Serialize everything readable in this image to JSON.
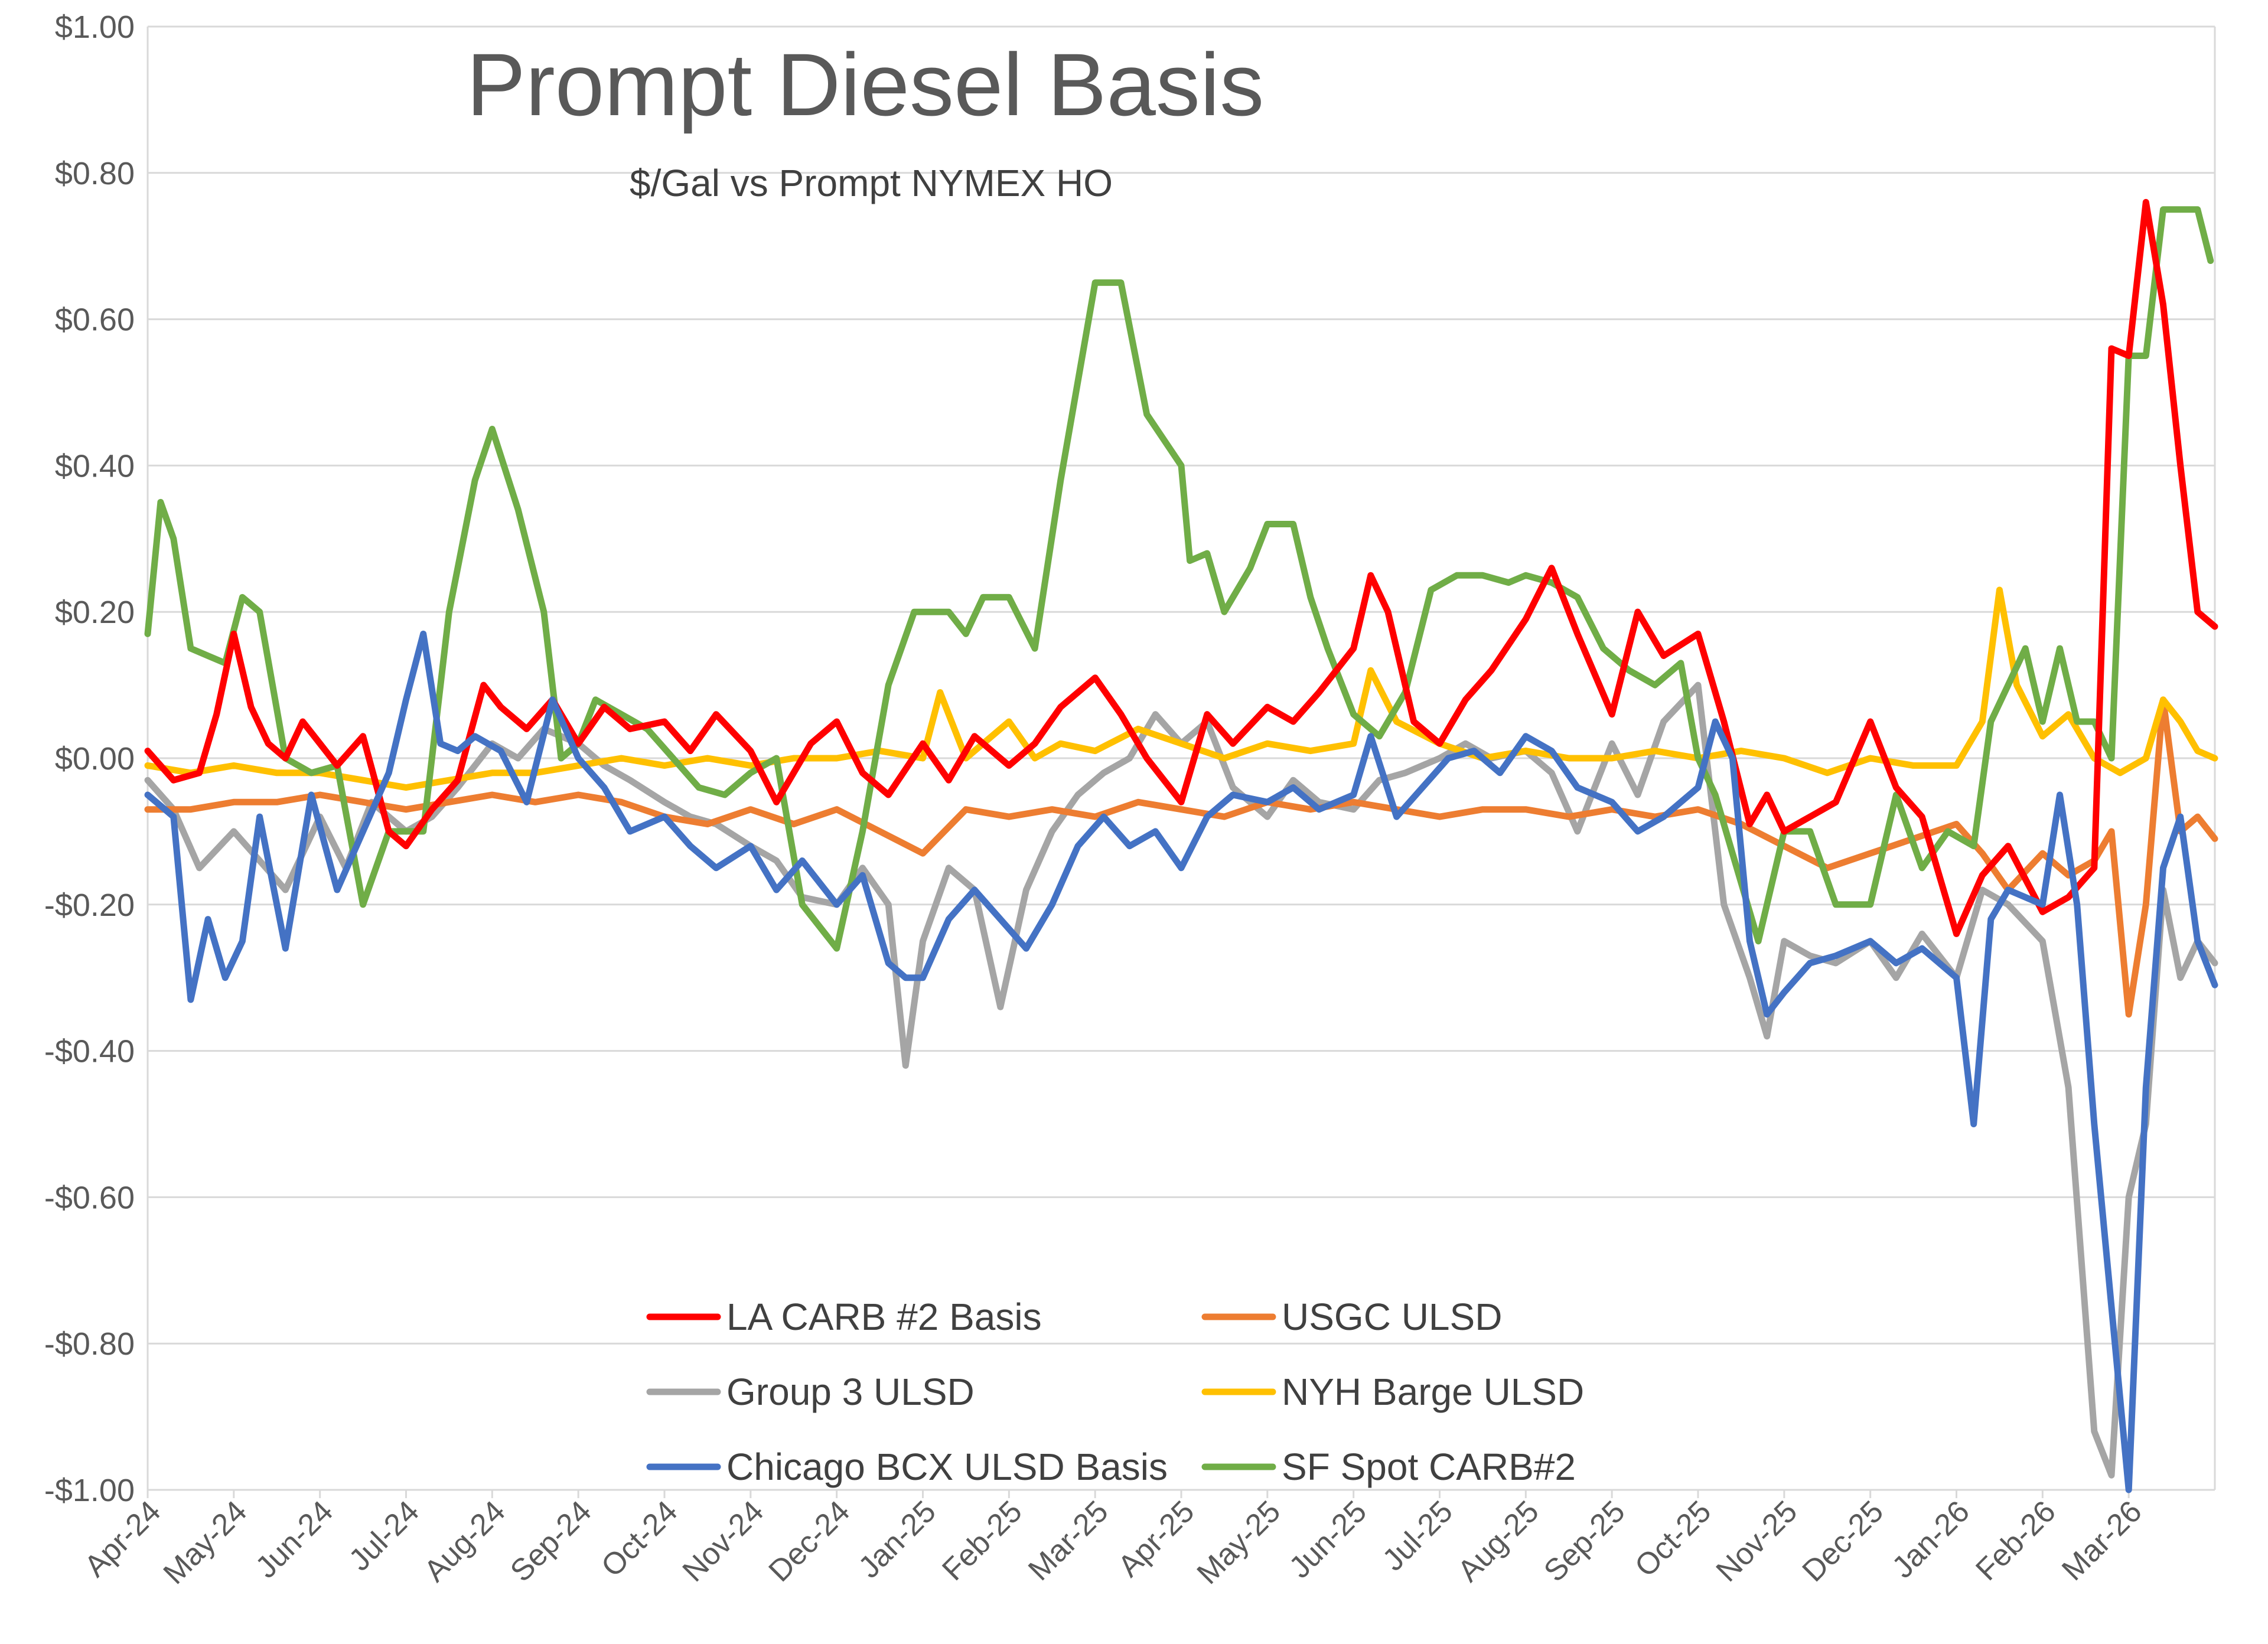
{
  "chart_data": {
    "type": "line",
    "title": "Prompt Diesel Basis",
    "subtitle": "$/Gal vs  Prompt NYMEX HO",
    "xlabel": "",
    "ylabel": "",
    "ylim": [
      -1.0,
      1.0
    ],
    "yticks": [
      1.0,
      0.8,
      0.6,
      0.4,
      0.2,
      0.0,
      -0.2,
      -0.4,
      -0.6,
      -0.8,
      -1.0
    ],
    "ytick_labels": [
      "$1.00",
      "$0.80",
      "$0.60",
      "$0.40",
      "$0.20",
      "$0.00",
      "-$0.20",
      "-$0.40",
      "-$0.60",
      "-$0.80",
      "-$1.00"
    ],
    "x_range": [
      0,
      24
    ],
    "x_tick_labels": [
      "Apr-24",
      "May-24",
      "Jun-24",
      "Jul-24",
      "Aug-24",
      "Sep-24",
      "Oct-24",
      "Nov-24",
      "Dec-24",
      "Jan-25",
      "Feb-25",
      "Mar-25",
      "Apr-25",
      "May-25",
      "Jun-25",
      "Jul-25",
      "Aug-25",
      "Sep-25",
      "Oct-25",
      "Nov-25",
      "Dec-25",
      "Jan-26",
      "Feb-26",
      "Mar-26"
    ],
    "x_unit": "months since Apr-24",
    "grid": true,
    "legend_position": "bottom-center",
    "series": [
      {
        "name": "LA CARB #2 Basis",
        "color": "#ff0000",
        "x": [
          0,
          0.3,
          0.6,
          0.8,
          1.0,
          1.2,
          1.4,
          1.6,
          1.8,
          2.0,
          2.2,
          2.5,
          2.8,
          3.0,
          3.3,
          3.6,
          3.9,
          4.1,
          4.4,
          4.7,
          5.0,
          5.3,
          5.6,
          6.0,
          6.3,
          6.6,
          7.0,
          7.3,
          7.7,
          8.0,
          8.3,
          8.6,
          9.0,
          9.3,
          9.6,
          10.0,
          10.3,
          10.6,
          11.0,
          11.3,
          11.6,
          12.0,
          12.3,
          12.6,
          13.0,
          13.3,
          13.6,
          14.0,
          14.2,
          14.4,
          14.7,
          15.0,
          15.3,
          15.6,
          16.0,
          16.3,
          16.6,
          17.0,
          17.3,
          17.6,
          18.0,
          18.3,
          18.6,
          18.8,
          19.0,
          19.3,
          19.6,
          20.0,
          20.3,
          20.6,
          21.0,
          21.3,
          21.6,
          22.0,
          22.3,
          22.6,
          22.8,
          23.0,
          23.2,
          23.4,
          23.6,
          23.8,
          24.0
        ],
        "values": [
          0.01,
          -0.03,
          -0.02,
          0.06,
          0.17,
          0.07,
          0.02,
          0.0,
          0.05,
          0.02,
          -0.01,
          0.03,
          -0.1,
          -0.12,
          -0.07,
          -0.03,
          0.1,
          0.07,
          0.04,
          0.08,
          0.02,
          0.07,
          0.04,
          0.05,
          0.01,
          0.06,
          0.01,
          -0.06,
          0.02,
          0.05,
          -0.02,
          -0.05,
          0.02,
          -0.03,
          0.03,
          -0.01,
          0.02,
          0.07,
          0.11,
          0.06,
          0.0,
          -0.06,
          0.06,
          0.02,
          0.07,
          0.05,
          0.09,
          0.15,
          0.25,
          0.2,
          0.05,
          0.02,
          0.08,
          0.12,
          0.19,
          0.26,
          0.17,
          0.06,
          0.2,
          0.14,
          0.17,
          0.05,
          -0.09,
          -0.05,
          -0.1,
          -0.08,
          -0.06,
          0.05,
          -0.04,
          -0.08,
          -0.24,
          -0.16,
          -0.12,
          -0.21,
          -0.19,
          -0.15,
          0.56,
          0.55,
          0.76,
          0.62,
          0.4,
          0.2,
          0.18
        ]
      },
      {
        "name": "USGC ULSD",
        "color": "#ed7d31",
        "x": [
          0,
          0.5,
          1.0,
          1.5,
          2.0,
          2.5,
          3.0,
          3.5,
          4.0,
          4.5,
          5.0,
          5.5,
          6.0,
          6.5,
          7.0,
          7.5,
          8.0,
          8.5,
          9.0,
          9.5,
          10.0,
          10.5,
          11.0,
          11.5,
          12.0,
          12.5,
          13.0,
          13.5,
          14.0,
          14.5,
          15.0,
          15.5,
          16.0,
          16.5,
          17.0,
          17.5,
          18.0,
          18.5,
          19.0,
          19.5,
          20.0,
          20.5,
          21.0,
          21.3,
          21.6,
          22.0,
          22.3,
          22.6,
          22.8,
          23.0,
          23.2,
          23.4,
          23.6,
          23.8,
          24.0
        ],
        "values": [
          -0.07,
          -0.07,
          -0.06,
          -0.06,
          -0.05,
          -0.06,
          -0.07,
          -0.06,
          -0.05,
          -0.06,
          -0.05,
          -0.06,
          -0.08,
          -0.09,
          -0.07,
          -0.09,
          -0.07,
          -0.1,
          -0.13,
          -0.07,
          -0.08,
          -0.07,
          -0.08,
          -0.06,
          -0.07,
          -0.08,
          -0.06,
          -0.07,
          -0.06,
          -0.07,
          -0.08,
          -0.07,
          -0.07,
          -0.08,
          -0.07,
          -0.08,
          -0.07,
          -0.09,
          -0.12,
          -0.15,
          -0.13,
          -0.11,
          -0.09,
          -0.13,
          -0.18,
          -0.13,
          -0.16,
          -0.14,
          -0.1,
          -0.35,
          -0.2,
          0.08,
          -0.1,
          -0.08,
          -0.11
        ]
      },
      {
        "name": "Group 3 ULSD",
        "color": "#a5a5a5",
        "x": [
          0,
          0.3,
          0.6,
          1.0,
          1.3,
          1.6,
          2.0,
          2.3,
          2.6,
          3.0,
          3.3,
          3.6,
          4.0,
          4.3,
          4.6,
          5.0,
          5.3,
          5.6,
          6.0,
          6.3,
          6.6,
          7.0,
          7.3,
          7.6,
          8.0,
          8.3,
          8.6,
          8.8,
          9.0,
          9.3,
          9.6,
          9.9,
          10.2,
          10.5,
          10.8,
          11.1,
          11.4,
          11.7,
          12.0,
          12.3,
          12.6,
          13.0,
          13.3,
          13.6,
          14.0,
          14.3,
          14.6,
          15.0,
          15.3,
          15.6,
          16.0,
          16.3,
          16.6,
          17.0,
          17.3,
          17.6,
          18.0,
          18.3,
          18.6,
          18.8,
          19.0,
          19.3,
          19.6,
          20.0,
          20.3,
          20.6,
          21.0,
          21.3,
          21.6,
          22.0,
          22.3,
          22.6,
          22.8,
          23.0,
          23.2,
          23.4,
          23.6,
          23.8,
          24.0
        ],
        "values": [
          -0.03,
          -0.07,
          -0.15,
          -0.1,
          -0.14,
          -0.18,
          -0.08,
          -0.15,
          -0.06,
          -0.1,
          -0.08,
          -0.04,
          0.02,
          0.0,
          0.04,
          0.02,
          -0.01,
          -0.03,
          -0.06,
          -0.08,
          -0.09,
          -0.12,
          -0.14,
          -0.19,
          -0.2,
          -0.15,
          -0.2,
          -0.42,
          -0.25,
          -0.15,
          -0.18,
          -0.34,
          -0.18,
          -0.1,
          -0.05,
          -0.02,
          0.0,
          0.06,
          0.02,
          0.05,
          -0.04,
          -0.08,
          -0.03,
          -0.06,
          -0.07,
          -0.03,
          -0.02,
          0.0,
          0.02,
          0.0,
          0.01,
          -0.02,
          -0.1,
          0.02,
          -0.05,
          0.05,
          0.1,
          -0.2,
          -0.3,
          -0.38,
          -0.25,
          -0.27,
          -0.28,
          -0.25,
          -0.3,
          -0.24,
          -0.3,
          -0.18,
          -0.2,
          -0.25,
          -0.45,
          -0.92,
          -0.98,
          -0.6,
          -0.5,
          -0.18,
          -0.3,
          -0.25,
          -0.28
        ]
      },
      {
        "name": "NYH Barge ULSD",
        "color": "#ffc000",
        "x": [
          0,
          0.5,
          1.0,
          1.5,
          2.0,
          2.5,
          3.0,
          3.5,
          4.0,
          4.5,
          5.0,
          5.5,
          6.0,
          6.5,
          7.0,
          7.5,
          8.0,
          8.5,
          9.0,
          9.2,
          9.5,
          10.0,
          10.3,
          10.6,
          11.0,
          11.5,
          12.0,
          12.5,
          13.0,
          13.5,
          14.0,
          14.2,
          14.5,
          15.0,
          15.5,
          16.0,
          16.5,
          17.0,
          17.5,
          18.0,
          18.5,
          19.0,
          19.5,
          20.0,
          20.5,
          21.0,
          21.3,
          21.5,
          21.7,
          22.0,
          22.3,
          22.6,
          22.9,
          23.2,
          23.4,
          23.6,
          23.8,
          24.0
        ],
        "values": [
          -0.01,
          -0.02,
          -0.01,
          -0.02,
          -0.02,
          -0.03,
          -0.04,
          -0.03,
          -0.02,
          -0.02,
          -0.01,
          0.0,
          -0.01,
          0.0,
          -0.01,
          0.0,
          0.0,
          0.01,
          0.0,
          0.09,
          0.0,
          0.05,
          0.0,
          0.02,
          0.01,
          0.04,
          0.02,
          0.0,
          0.02,
          0.01,
          0.02,
          0.12,
          0.05,
          0.02,
          0.0,
          0.01,
          0.0,
          0.0,
          0.01,
          0.0,
          0.01,
          0.0,
          -0.02,
          0.0,
          -0.01,
          -0.01,
          0.05,
          0.23,
          0.1,
          0.03,
          0.06,
          0.0,
          -0.02,
          0.0,
          0.08,
          0.05,
          0.01,
          0.0
        ]
      },
      {
        "name": "Chicago BCX ULSD Basis",
        "color": "#4472c4",
        "x": [
          0,
          0.3,
          0.5,
          0.7,
          0.9,
          1.1,
          1.3,
          1.6,
          1.9,
          2.2,
          2.5,
          2.8,
          3.0,
          3.2,
          3.4,
          3.6,
          3.8,
          4.1,
          4.4,
          4.7,
          5.0,
          5.3,
          5.6,
          6.0,
          6.3,
          6.6,
          7.0,
          7.3,
          7.6,
          8.0,
          8.3,
          8.6,
          8.8,
          9.0,
          9.3,
          9.6,
          9.9,
          10.2,
          10.5,
          10.8,
          11.1,
          11.4,
          11.7,
          12.0,
          12.3,
          12.6,
          13.0,
          13.3,
          13.6,
          14.0,
          14.2,
          14.5,
          14.8,
          15.1,
          15.4,
          15.7,
          16.0,
          16.3,
          16.6,
          17.0,
          17.3,
          17.6,
          18.0,
          18.2,
          18.4,
          18.6,
          18.8,
          19.0,
          19.3,
          19.6,
          20.0,
          20.3,
          20.6,
          21.0,
          21.2,
          21.4,
          21.6,
          22.0,
          22.2,
          22.4,
          22.6,
          22.8,
          23.0,
          23.2,
          23.4,
          23.6,
          23.8,
          24.0
        ],
        "values": [
          -0.05,
          -0.08,
          -0.33,
          -0.22,
          -0.3,
          -0.25,
          -0.08,
          -0.26,
          -0.05,
          -0.18,
          -0.1,
          -0.02,
          0.08,
          0.17,
          0.02,
          0.01,
          0.03,
          0.01,
          -0.06,
          0.08,
          0.0,
          -0.04,
          -0.1,
          -0.08,
          -0.12,
          -0.15,
          -0.12,
          -0.18,
          -0.14,
          -0.2,
          -0.16,
          -0.28,
          -0.3,
          -0.3,
          -0.22,
          -0.18,
          -0.22,
          -0.26,
          -0.2,
          -0.12,
          -0.08,
          -0.12,
          -0.1,
          -0.15,
          -0.08,
          -0.05,
          -0.06,
          -0.04,
          -0.07,
          -0.05,
          0.03,
          -0.08,
          -0.04,
          0.0,
          0.01,
          -0.02,
          0.03,
          0.01,
          -0.04,
          -0.06,
          -0.1,
          -0.08,
          -0.04,
          0.05,
          0.0,
          -0.25,
          -0.35,
          -0.32,
          -0.28,
          -0.27,
          -0.25,
          -0.28,
          -0.26,
          -0.3,
          -0.5,
          -0.22,
          -0.18,
          -0.2,
          -0.05,
          -0.2,
          -0.5,
          -0.75,
          -1.0,
          -0.45,
          -0.15,
          -0.08,
          -0.25,
          -0.31
        ]
      },
      {
        "name": "SF Spot CARB#2",
        "color": "#70ad47",
        "x": [
          0,
          0.15,
          0.3,
          0.5,
          0.7,
          0.9,
          1.1,
          1.3,
          1.6,
          1.9,
          2.2,
          2.5,
          2.8,
          3.0,
          3.2,
          3.5,
          3.8,
          4.0,
          4.3,
          4.6,
          4.8,
          5.0,
          5.2,
          5.5,
          5.8,
          6.1,
          6.4,
          6.7,
          7.0,
          7.3,
          7.6,
          8.0,
          8.3,
          8.6,
          8.9,
          9.1,
          9.3,
          9.5,
          9.7,
          10.0,
          10.3,
          10.6,
          11.0,
          11.3,
          11.6,
          12.0,
          12.1,
          12.3,
          12.5,
          12.8,
          13.0,
          13.3,
          13.5,
          13.7,
          14.0,
          14.3,
          14.6,
          14.9,
          15.2,
          15.5,
          15.8,
          16.0,
          16.3,
          16.6,
          16.9,
          17.2,
          17.5,
          17.8,
          18.0,
          18.2,
          18.4,
          18.7,
          19.0,
          19.3,
          19.6,
          20.0,
          20.3,
          20.6,
          20.9,
          21.2,
          21.4,
          21.6,
          21.8,
          22.0,
          22.2,
          22.4,
          22.6,
          22.8,
          23.0,
          23.2,
          23.4,
          23.6,
          23.8,
          23.95
        ],
        "values": [
          0.17,
          0.35,
          0.3,
          0.15,
          0.14,
          0.13,
          0.22,
          0.2,
          0.0,
          -0.02,
          -0.01,
          -0.2,
          -0.1,
          -0.1,
          -0.1,
          0.2,
          0.38,
          0.45,
          0.34,
          0.2,
          0.0,
          0.02,
          0.08,
          0.06,
          0.04,
          0.0,
          -0.04,
          -0.05,
          -0.02,
          0.0,
          -0.2,
          -0.26,
          -0.1,
          0.1,
          0.2,
          0.2,
          0.2,
          0.17,
          0.22,
          0.22,
          0.15,
          0.38,
          0.65,
          0.65,
          0.47,
          0.4,
          0.27,
          0.28,
          0.2,
          0.26,
          0.32,
          0.32,
          0.22,
          0.15,
          0.06,
          0.03,
          0.09,
          0.23,
          0.25,
          0.25,
          0.24,
          0.25,
          0.24,
          0.22,
          0.15,
          0.12,
          0.1,
          0.13,
          0.0,
          -0.05,
          -0.13,
          -0.25,
          -0.1,
          -0.1,
          -0.2,
          -0.2,
          -0.05,
          -0.15,
          -0.1,
          -0.12,
          0.05,
          0.1,
          0.15,
          0.05,
          0.15,
          0.05,
          0.05,
          0.0,
          0.55,
          0.55,
          0.75,
          0.75,
          0.75,
          0.68
        ]
      }
    ]
  }
}
